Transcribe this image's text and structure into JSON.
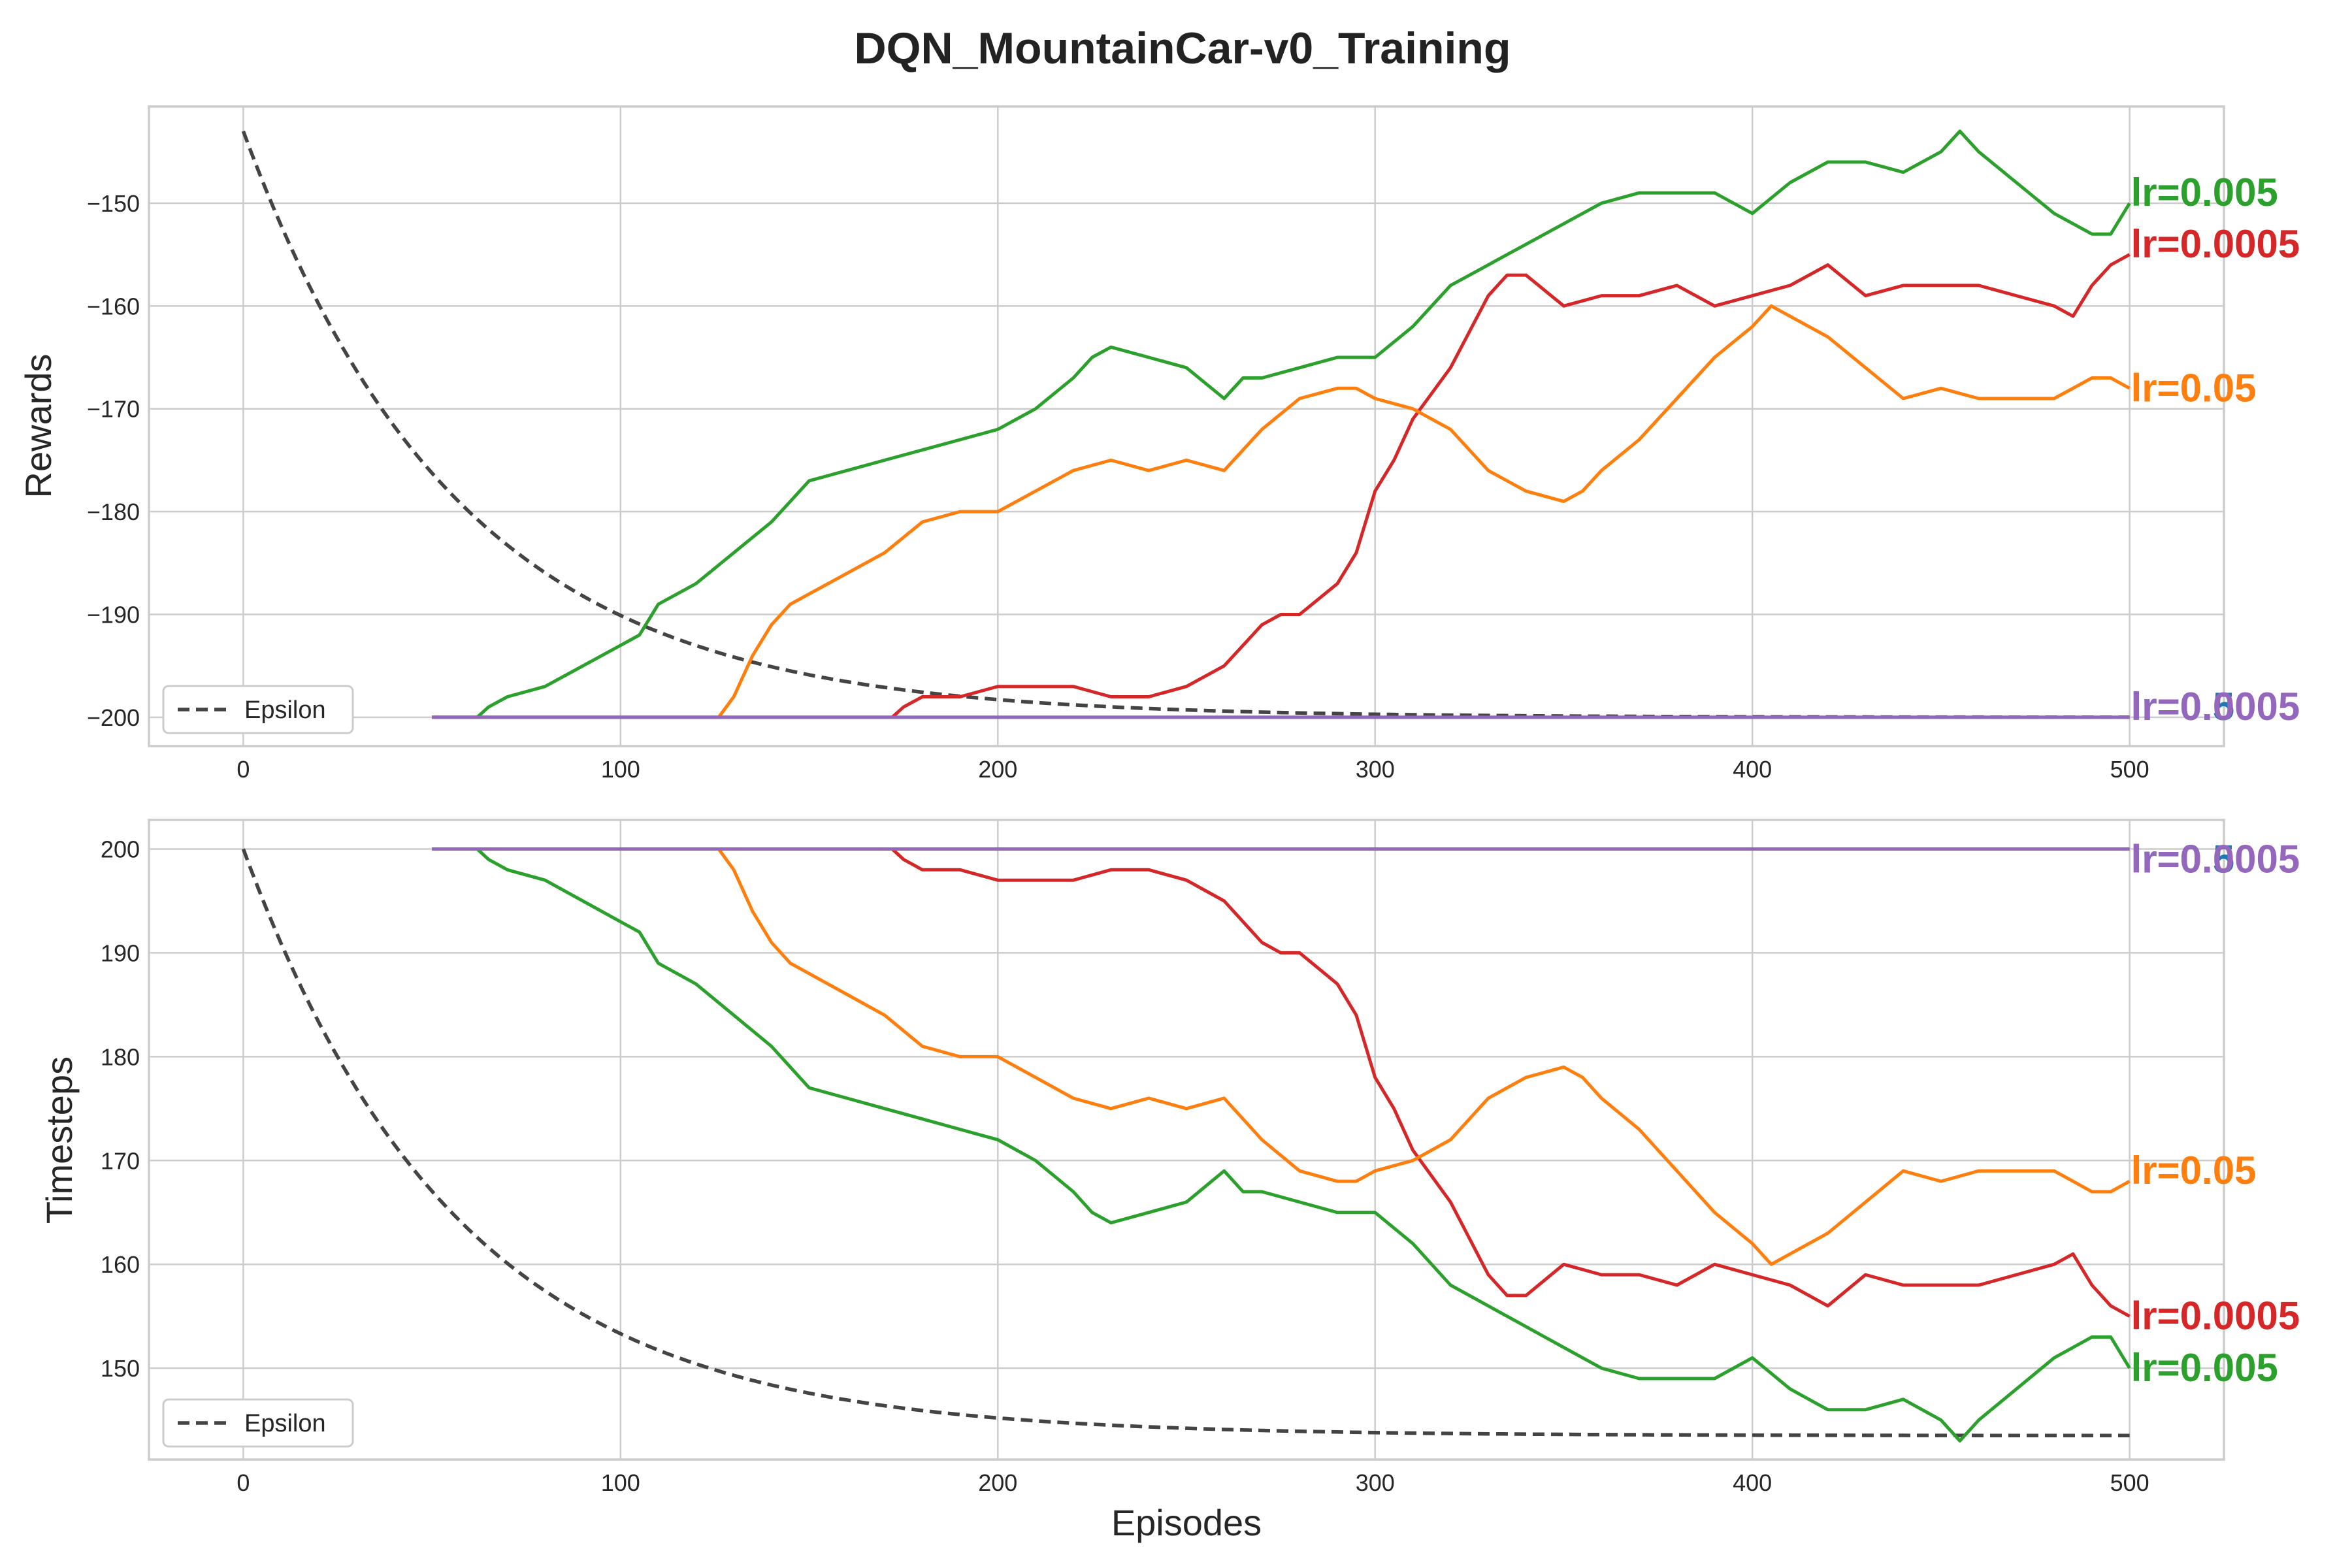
{
  "title": "DQN_MountainCar-v0_Training",
  "chart_data": [
    {
      "type": "line",
      "xlabel": "",
      "ylabel": "Rewards",
      "xlim": [
        -25,
        525
      ],
      "ylim": [
        -202.8,
        -140.6
      ],
      "xticks": [
        0,
        100,
        200,
        300,
        400,
        500
      ],
      "xtick_labels": [
        "0",
        "100",
        "200",
        "300",
        "400",
        "500"
      ],
      "yticks": [
        -200,
        -190,
        -180,
        -170,
        -160,
        -150
      ],
      "ytick_labels": [
        "−200",
        "−190",
        "−180",
        "−170",
        "−160",
        "−150"
      ],
      "grid": true,
      "legend": {
        "position": "lower-left",
        "entries": [
          "Epsilon"
        ]
      },
      "epsilon_line": {
        "name": "Epsilon",
        "color": "#444444",
        "style": "dashed",
        "start": -143,
        "end": -200,
        "decay_rate": 0.0175
      },
      "series": [
        {
          "name": "lr=0.005",
          "color": "#2ca02c",
          "x": [
            50,
            62,
            65,
            70,
            80,
            90,
            100,
            105,
            110,
            120,
            130,
            140,
            145,
            150,
            160,
            170,
            180,
            190,
            200,
            210,
            220,
            225,
            230,
            240,
            250,
            260,
            265,
            270,
            280,
            290,
            300,
            310,
            320,
            330,
            340,
            350,
            360,
            370,
            380,
            390,
            400,
            410,
            420,
            430,
            440,
            450,
            455,
            460,
            470,
            480,
            485,
            490,
            495,
            500
          ],
          "y": [
            -200,
            -200,
            -199,
            -198,
            -197,
            -195,
            -193,
            -192,
            -189,
            -187,
            -184,
            -181,
            -179,
            -177,
            -176,
            -175,
            -174,
            -173,
            -172,
            -170,
            -167,
            -165,
            -164,
            -165,
            -166,
            -169,
            -167,
            -167,
            -166,
            -165,
            -165,
            -162,
            -158,
            -156,
            -154,
            -152,
            -150,
            -149,
            -149,
            -149,
            -151,
            -148,
            -146,
            -146,
            -147,
            -145,
            -143,
            -145,
            -148,
            -151,
            -152,
            -153,
            -153,
            -150
          ]
        },
        {
          "name": "lr=0.0005",
          "color": "#d62728",
          "x": [
            50,
            172,
            175,
            180,
            190,
            200,
            210,
            220,
            230,
            240,
            250,
            260,
            270,
            275,
            280,
            290,
            295,
            300,
            305,
            310,
            320,
            330,
            335,
            340,
            350,
            360,
            370,
            380,
            390,
            400,
            410,
            420,
            430,
            440,
            450,
            460,
            470,
            480,
            485,
            490,
            495,
            500
          ],
          "y": [
            -200,
            -200,
            -199,
            -198,
            -198,
            -197,
            -197,
            -197,
            -198,
            -198,
            -197,
            -195,
            -191,
            -190,
            -190,
            -187,
            -184,
            -178,
            -175,
            -171,
            -166,
            -159,
            -157,
            -157,
            -160,
            -159,
            -159,
            -158,
            -160,
            -159,
            -158,
            -156,
            -159,
            -158,
            -158,
            -158,
            -159,
            -160,
            -161,
            -158,
            -156,
            -155
          ]
        },
        {
          "name": "lr=0.05",
          "color": "#ff7f0e",
          "x": [
            50,
            126,
            130,
            135,
            140,
            145,
            150,
            160,
            170,
            180,
            190,
            200,
            210,
            220,
            230,
            240,
            250,
            260,
            270,
            280,
            290,
            295,
            300,
            310,
            320,
            330,
            340,
            350,
            355,
            360,
            370,
            380,
            390,
            400,
            405,
            410,
            420,
            430,
            440,
            450,
            460,
            470,
            480,
            490,
            495,
            500
          ],
          "y": [
            -200,
            -200,
            -198,
            -194,
            -191,
            -189,
            -188,
            -186,
            -184,
            -181,
            -180,
            -180,
            -178,
            -176,
            -175,
            -176,
            -175,
            -176,
            -172,
            -169,
            -168,
            -168,
            -169,
            -170,
            -172,
            -176,
            -178,
            -179,
            -178,
            -176,
            -173,
            -169,
            -165,
            -162,
            -160,
            -161,
            -163,
            -166,
            -169,
            -168,
            -169,
            -169,
            -169,
            -167,
            -167,
            -168
          ]
        },
        {
          "name": "lr=0.5",
          "color": "#1f77b4",
          "x": [
            50,
            500
          ],
          "y": [
            -200,
            -200
          ]
        },
        {
          "name": "lr=0.0005b",
          "color": "#9467bd",
          "x": [
            50,
            500
          ],
          "y": [
            -200,
            -200
          ]
        }
      ],
      "end_labels": [
        {
          "text": "lr=0.005",
          "color": "#2ca02c",
          "y": -149
        },
        {
          "text": "lr=0.0005",
          "color": "#d62728",
          "y": -154
        },
        {
          "text": "lr=0.05",
          "color": "#ff7f0e",
          "y": -168
        },
        {
          "text": "lr=0.5",
          "color": "#1f77b4",
          "y": -199
        },
        {
          "text": "lr=0.0005",
          "color": "#9467bd",
          "y": -199
        }
      ]
    },
    {
      "type": "line",
      "xlabel": "Episodes",
      "ylabel": "Timesteps",
      "xlim": [
        -25,
        525
      ],
      "ylim": [
        141.2,
        202.8
      ],
      "xticks": [
        0,
        100,
        200,
        300,
        400,
        500
      ],
      "xtick_labels": [
        "0",
        "100",
        "200",
        "300",
        "400",
        "500"
      ],
      "yticks": [
        150,
        160,
        170,
        180,
        190,
        200
      ],
      "ytick_labels": [
        "150",
        "160",
        "170",
        "180",
        "190",
        "200"
      ],
      "grid": true,
      "legend": {
        "position": "lower-left",
        "entries": [
          "Epsilon"
        ]
      },
      "epsilon_line": {
        "name": "Epsilon",
        "color": "#444444",
        "style": "dashed",
        "start": 200,
        "end": 143.5,
        "decay_rate": 0.0175
      },
      "series": [
        {
          "name": "lr=0.005",
          "color": "#2ca02c",
          "x": [
            50,
            62,
            65,
            70,
            80,
            90,
            100,
            105,
            110,
            120,
            130,
            140,
            145,
            150,
            160,
            170,
            180,
            190,
            200,
            210,
            220,
            225,
            230,
            240,
            250,
            260,
            265,
            270,
            280,
            290,
            300,
            310,
            320,
            330,
            340,
            350,
            360,
            370,
            380,
            390,
            400,
            410,
            420,
            430,
            440,
            450,
            455,
            460,
            470,
            480,
            485,
            490,
            495,
            500
          ],
          "y": [
            200,
            200,
            199,
            198,
            197,
            195,
            193,
            192,
            189,
            187,
            184,
            181,
            179,
            177,
            176,
            175,
            174,
            173,
            172,
            170,
            167,
            165,
            164,
            165,
            166,
            169,
            167,
            167,
            166,
            165,
            165,
            162,
            158,
            156,
            154,
            152,
            150,
            149,
            149,
            149,
            151,
            148,
            146,
            146,
            147,
            145,
            143,
            145,
            148,
            151,
            152,
            153,
            153,
            150
          ]
        },
        {
          "name": "lr=0.0005",
          "color": "#d62728",
          "x": [
            50,
            172,
            175,
            180,
            190,
            200,
            210,
            220,
            230,
            240,
            250,
            260,
            270,
            275,
            280,
            290,
            295,
            300,
            305,
            310,
            320,
            330,
            335,
            340,
            350,
            360,
            370,
            380,
            390,
            400,
            410,
            420,
            430,
            440,
            450,
            460,
            470,
            480,
            485,
            490,
            495,
            500
          ],
          "y": [
            200,
            200,
            199,
            198,
            198,
            197,
            197,
            197,
            198,
            198,
            197,
            195,
            191,
            190,
            190,
            187,
            184,
            178,
            175,
            171,
            166,
            159,
            157,
            157,
            160,
            159,
            159,
            158,
            160,
            159,
            158,
            156,
            159,
            158,
            158,
            158,
            159,
            160,
            161,
            158,
            156,
            155
          ]
        },
        {
          "name": "lr=0.05",
          "color": "#ff7f0e",
          "x": [
            50,
            126,
            130,
            135,
            140,
            145,
            150,
            160,
            170,
            180,
            190,
            200,
            210,
            220,
            230,
            240,
            250,
            260,
            270,
            280,
            290,
            295,
            300,
            310,
            320,
            330,
            340,
            350,
            355,
            360,
            370,
            380,
            390,
            400,
            405,
            410,
            420,
            430,
            440,
            450,
            460,
            470,
            480,
            490,
            495,
            500
          ],
          "y": [
            200,
            200,
            198,
            194,
            191,
            189,
            188,
            186,
            184,
            181,
            180,
            180,
            178,
            176,
            175,
            176,
            175,
            176,
            172,
            169,
            168,
            168,
            169,
            170,
            172,
            176,
            178,
            179,
            178,
            176,
            173,
            169,
            165,
            162,
            160,
            161,
            163,
            166,
            169,
            168,
            169,
            169,
            169,
            167,
            167,
            168
          ]
        },
        {
          "name": "lr=0.5",
          "color": "#1f77b4",
          "x": [
            50,
            500
          ],
          "y": [
            200,
            200
          ]
        },
        {
          "name": "lr=0.0005b",
          "color": "#9467bd",
          "x": [
            50,
            500
          ],
          "y": [
            200,
            200
          ]
        }
      ],
      "end_labels": [
        {
          "text": "lr=0.5",
          "color": "#1f77b4",
          "y": 199
        },
        {
          "text": "lr=0.0005",
          "color": "#9467bd",
          "y": 199
        },
        {
          "text": "lr=0.05",
          "color": "#ff7f0e",
          "y": 169
        },
        {
          "text": "lr=0.0005",
          "color": "#d62728",
          "y": 155
        },
        {
          "text": "lr=0.005",
          "color": "#2ca02c",
          "y": 150
        }
      ]
    }
  ]
}
